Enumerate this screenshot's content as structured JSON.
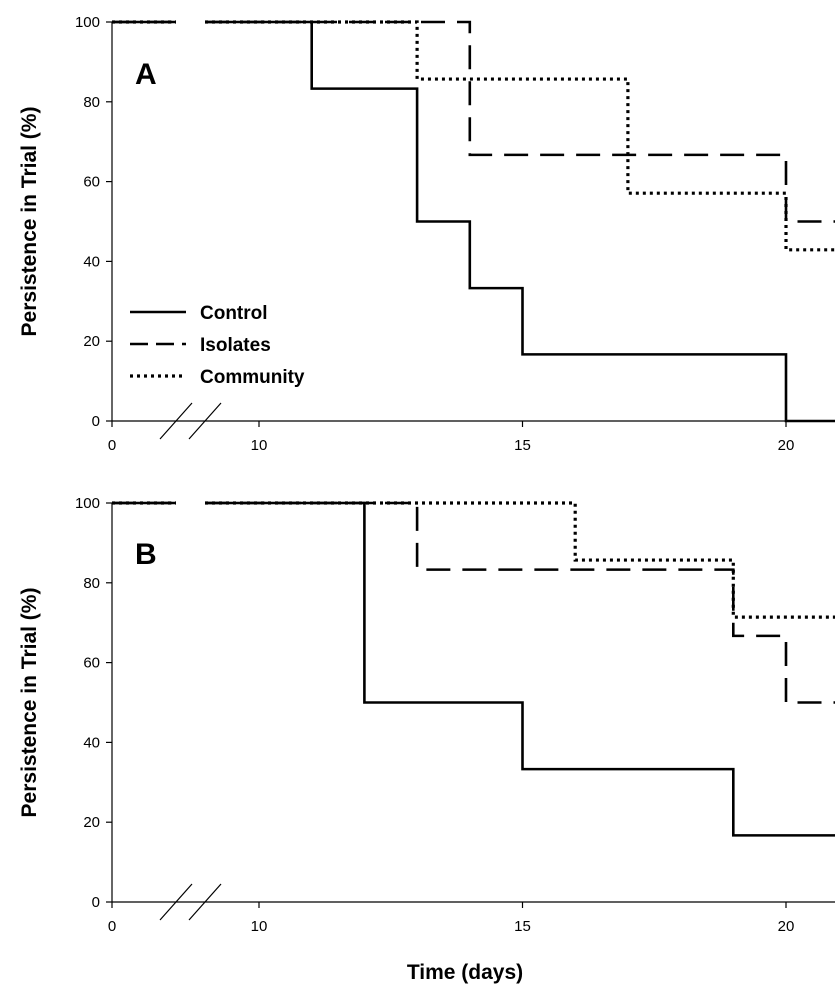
{
  "chart_data": [
    {
      "type": "line",
      "panel_label": "A",
      "ylabel": "Persistence in Trial (%)",
      "xlabel": "",
      "xlim": [
        0,
        21
      ],
      "ylim": [
        0,
        100
      ],
      "x_ticks": [
        0,
        10,
        15,
        20
      ],
      "y_ticks": [
        0,
        20,
        40,
        60,
        80,
        100
      ],
      "axis_break": true,
      "step": true,
      "legend": {
        "placement": "lower-left",
        "entries": [
          {
            "name": "Control",
            "style": "solid"
          },
          {
            "name": "Isolates",
            "style": "dashed"
          },
          {
            "name": "Community",
            "style": "dotted"
          }
        ]
      },
      "series": [
        {
          "name": "Control",
          "style": "solid",
          "points": [
            [
              0,
              100
            ],
            [
              11,
              100
            ],
            [
              11,
              83.3
            ],
            [
              13,
              83.3
            ],
            [
              13,
              50
            ],
            [
              14,
              50
            ],
            [
              14,
              33.3
            ],
            [
              15,
              33.3
            ],
            [
              15,
              16.7
            ],
            [
              20,
              16.7
            ],
            [
              20,
              0
            ],
            [
              21,
              0
            ]
          ]
        },
        {
          "name": "Isolates",
          "style": "dashed",
          "points": [
            [
              0,
              100
            ],
            [
              14,
              100
            ],
            [
              14,
              66.7
            ],
            [
              20,
              66.7
            ],
            [
              20,
              50
            ],
            [
              21,
              50
            ]
          ]
        },
        {
          "name": "Community",
          "style": "dotted",
          "points": [
            [
              0,
              100
            ],
            [
              13,
              100
            ],
            [
              13,
              85.7
            ],
            [
              17,
              85.7
            ],
            [
              17,
              57.1
            ],
            [
              20,
              57.1
            ],
            [
              20,
              42.9
            ],
            [
              21,
              42.9
            ]
          ]
        }
      ]
    },
    {
      "type": "line",
      "panel_label": "B",
      "ylabel": "Persistence in Trial (%)",
      "xlabel": "Time (days)",
      "xlim": [
        0,
        21
      ],
      "ylim": [
        0,
        100
      ],
      "x_ticks": [
        0,
        10,
        15,
        20
      ],
      "y_ticks": [
        0,
        20,
        40,
        60,
        80,
        100
      ],
      "axis_break": true,
      "step": true,
      "series": [
        {
          "name": "Control",
          "style": "solid",
          "points": [
            [
              0,
              100
            ],
            [
              12,
              100
            ],
            [
              12,
              50
            ],
            [
              15,
              50
            ],
            [
              15,
              33.3
            ],
            [
              19,
              33.3
            ],
            [
              19,
              16.7
            ],
            [
              21,
              16.7
            ],
            [
              21,
              0
            ]
          ]
        },
        {
          "name": "Isolates",
          "style": "dashed",
          "points": [
            [
              0,
              100
            ],
            [
              13,
              100
            ],
            [
              13,
              83.3
            ],
            [
              19,
              83.3
            ],
            [
              19,
              66.7
            ],
            [
              20,
              66.7
            ],
            [
              20,
              50
            ],
            [
              21,
              50
            ]
          ]
        },
        {
          "name": "Community",
          "style": "dotted",
          "points": [
            [
              0,
              100
            ],
            [
              16,
              100
            ],
            [
              16,
              85.7
            ],
            [
              19,
              85.7
            ],
            [
              19,
              71.4
            ],
            [
              21,
              71.4
            ]
          ]
        }
      ]
    }
  ]
}
